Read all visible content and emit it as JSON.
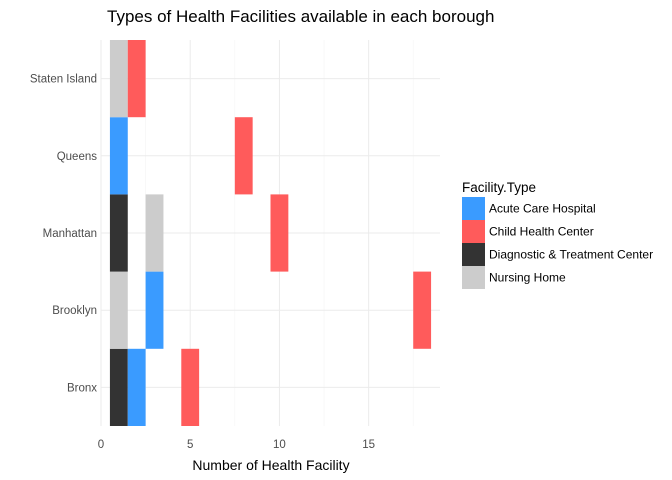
{
  "chart_data": {
    "type": "bar",
    "orientation": "horizontal",
    "title": "Types of Health Facilities available in each borough",
    "xlabel": "Number of Health Facility",
    "ylabel": "",
    "xlim": [
      0,
      19
    ],
    "xticks": [
      0,
      5,
      10,
      15
    ],
    "grid": true,
    "legend": {
      "title": "Facility.Type",
      "placement": "right"
    },
    "categories": [
      "Bronx",
      "Brooklyn",
      "Manhattan",
      "Queens",
      "Staten Island"
    ],
    "bar_spans": [
      {
        "series": "Diagnostic & Treatment Center",
        "category": "Bronx",
        "from": 0.5,
        "to": 1.5
      },
      {
        "series": "Acute Care Hospital",
        "category": "Bronx",
        "from": 1.5,
        "to": 2.5
      },
      {
        "series": "Child Health Center",
        "category": "Bronx",
        "from": 4.5,
        "to": 5.5
      },
      {
        "series": "Nursing Home",
        "category": "Brooklyn",
        "from": 0.5,
        "to": 1.5
      },
      {
        "series": "Acute Care Hospital",
        "category": "Brooklyn",
        "from": 2.5,
        "to": 3.5
      },
      {
        "series": "Child Health Center",
        "category": "Brooklyn",
        "from": 17.5,
        "to": 18.5
      },
      {
        "series": "Diagnostic & Treatment Center",
        "category": "Manhattan",
        "from": 0.5,
        "to": 1.5
      },
      {
        "series": "Nursing Home",
        "category": "Manhattan",
        "from": 2.5,
        "to": 3.5
      },
      {
        "series": "Child Health Center",
        "category": "Manhattan",
        "from": 9.5,
        "to": 10.5
      },
      {
        "series": "Acute Care Hospital",
        "category": "Queens",
        "from": 0.5,
        "to": 1.5
      },
      {
        "series": "Child Health Center",
        "category": "Queens",
        "from": 7.5,
        "to": 8.5
      },
      {
        "series": "Nursing Home",
        "category": "Staten Island",
        "from": 0.5,
        "to": 1.5
      },
      {
        "series": "Child Health Center",
        "category": "Staten Island",
        "from": 1.5,
        "to": 2.5
      }
    ],
    "series": [
      {
        "name": "Acute Care Hospital",
        "color": "#3a9bff"
      },
      {
        "name": "Child Health Center",
        "color": "#ff5b5b"
      },
      {
        "name": "Diagnostic & Treatment Center",
        "color": "#333333"
      },
      {
        "name": "Nursing Home",
        "color": "#cccccc"
      }
    ]
  }
}
